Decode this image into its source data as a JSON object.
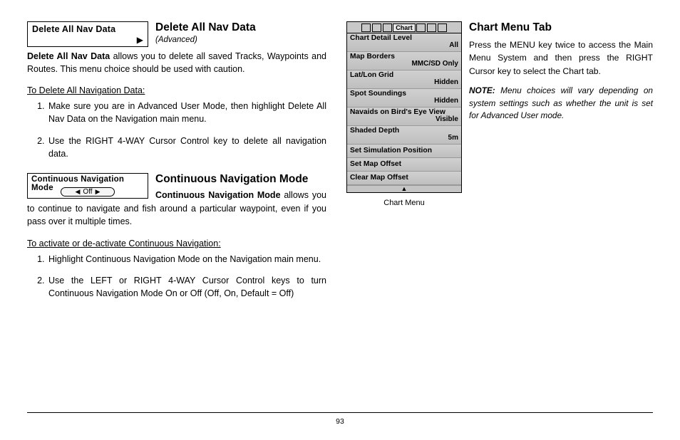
{
  "page_number": "93",
  "left": {
    "delete_box_label": "Delete All Nav Data",
    "delete_box_arrow": "▶",
    "delete_title": "Delete All Nav Data",
    "delete_subtitle": "(Advanced)",
    "delete_intro_bold": "Delete All Nav Data",
    "delete_intro_rest": " allows you to delete all saved Tracks, Waypoints and Routes. This menu choice should be used with caution.",
    "delete_howto_h": "To Delete All Navigation Data:",
    "delete_steps": [
      "Make sure you are in Advanced User Mode, then highlight Delete All Nav Data on the Navigation main menu.",
      "Use the RIGHT 4-WAY Cursor Control key to delete all navigation data."
    ],
    "cont_box_label": "Continuous Navigation Mode",
    "cont_pill_left": "◀",
    "cont_pill_text": "Off",
    "cont_pill_right": "▶",
    "cont_title": "Continuous Navigation Mode",
    "cont_intro_bold": "Continuous Navigation Mode",
    "cont_intro_rest": " allows you to continue to navigate and fish around a particular waypoint, even if you pass over it multiple times.",
    "cont_howto_h": "To activate or de-activate Continuous Navigation:",
    "cont_steps": [
      "Highlight Continuous Navigation Mode on the Navigation main menu.",
      "Use the LEFT or RIGHT 4-WAY Cursor Control keys to turn Continuous Navigation Mode On or Off (Off, On, Default = Off)"
    ]
  },
  "chart_menu": {
    "tab_label": "Chart",
    "caption": "Chart Menu",
    "rows": [
      {
        "k": "Chart Detail Level",
        "v": "All"
      },
      {
        "k": "Map Borders",
        "v": "MMC/SD Only"
      },
      {
        "k": "Lat/Lon Grid",
        "v": "Hidden"
      },
      {
        "k": "Spot Soundings",
        "v": "Hidden"
      },
      {
        "k": "Navaids on Bird's Eye View",
        "v": "Visible"
      },
      {
        "k": "Shaded Depth",
        "v": "5m"
      },
      {
        "k": "Set Simulation Position",
        "v": ""
      },
      {
        "k": "Set Map Offset",
        "v": ""
      },
      {
        "k": "Clear Map Offset",
        "v": ""
      }
    ],
    "foot_arrow": "▲"
  },
  "right": {
    "title": "Chart Menu Tab",
    "p1": "Press the MENU key twice to access the Main Menu System and then press the RIGHT Cursor key to select the Chart tab.",
    "note_label": "NOTE:",
    "note_rest": " Menu choices will vary depending on system settings such as whether the unit is set for Advanced User mode."
  }
}
